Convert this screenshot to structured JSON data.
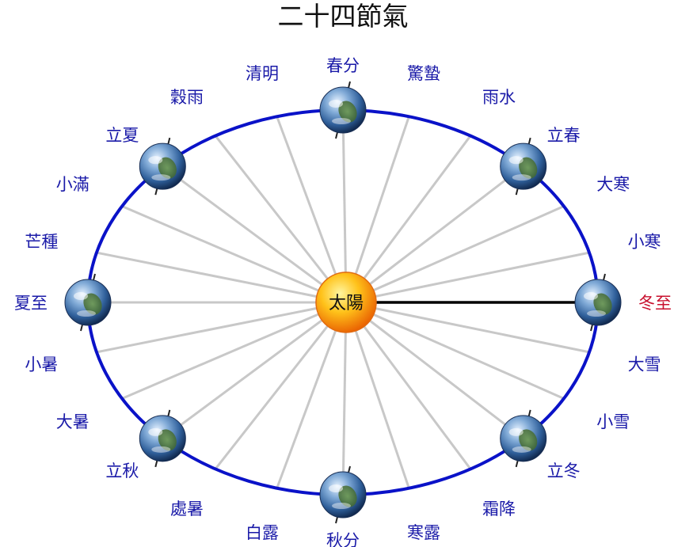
{
  "title": "二十四節氣",
  "sun_label": "太陽",
  "colors": {
    "orbit": "#0a12c8",
    "spoke": "#c8c8c8",
    "highlight_spoke": "#000000",
    "label": "#1a1aa8",
    "highlight_label": "#c8102e",
    "sun_core": "#ffdc3a",
    "sun_edge": "#e85a00"
  },
  "terms": [
    {
      "name": "冬至",
      "angle_deg": 0,
      "highlight": true
    },
    {
      "name": "小寒",
      "angle_deg": 15
    },
    {
      "name": "大寒",
      "angle_deg": 30
    },
    {
      "name": "立春",
      "angle_deg": 45
    },
    {
      "name": "雨水",
      "angle_deg": 60
    },
    {
      "name": "驚蟄",
      "angle_deg": 75
    },
    {
      "name": "春分",
      "angle_deg": 90
    },
    {
      "name": "清明",
      "angle_deg": 105
    },
    {
      "name": "穀雨",
      "angle_deg": 120
    },
    {
      "name": "立夏",
      "angle_deg": 135
    },
    {
      "name": "小滿",
      "angle_deg": 150
    },
    {
      "name": "芒種",
      "angle_deg": 165
    },
    {
      "name": "夏至",
      "angle_deg": 180
    },
    {
      "name": "小暑",
      "angle_deg": 195
    },
    {
      "name": "大暑",
      "angle_deg": 210
    },
    {
      "name": "立秋",
      "angle_deg": 225
    },
    {
      "name": "處暑",
      "angle_deg": 240
    },
    {
      "name": "白露",
      "angle_deg": 255
    },
    {
      "name": "秋分",
      "angle_deg": 270
    },
    {
      "name": "寒露",
      "angle_deg": 285
    },
    {
      "name": "霜降",
      "angle_deg": 300
    },
    {
      "name": "立冬",
      "angle_deg": 315
    },
    {
      "name": "小雪",
      "angle_deg": 330
    },
    {
      "name": "大雪",
      "angle_deg": 345
    }
  ],
  "earth_positions_deg": [
    0,
    45,
    90,
    135,
    180,
    225,
    270,
    315
  ]
}
